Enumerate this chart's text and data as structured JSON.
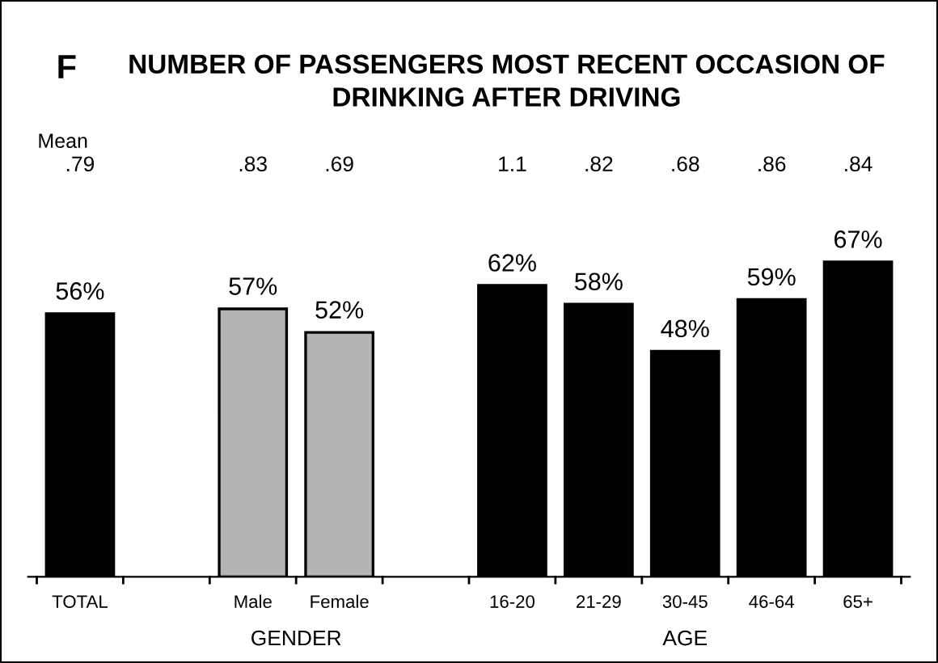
{
  "chart_data": {
    "type": "bar",
    "title": "NUMBER OF PASSENGERS MOST RECENT OCCASION OF DRINKING AFTER DRIVING",
    "categories": [
      "TOTAL",
      null,
      "Male",
      "Female",
      null,
      "16-20",
      "21-29",
      "30-45",
      "46-64",
      "65+"
    ],
    "values": [
      56,
      null,
      57,
      52,
      null,
      62,
      58,
      48,
      59,
      67
    ],
    "value_labels": [
      "56%",
      null,
      "57%",
      "52%",
      null,
      "62%",
      "58%",
      "48%",
      "59%",
      "67%"
    ],
    "colors": [
      "#000000",
      null,
      "#b4b4b4",
      "#b4b4b4",
      null,
      "#000000",
      "#000000",
      "#000000",
      "#000000",
      "#000000"
    ],
    "annotations": [
      "F",
      "Mean",
      "GENDER",
      "AGE",
      ".79",
      ".83",
      ".69",
      "1.1",
      ".82",
      ".68",
      ".86",
      ".84"
    ],
    "grid": false,
    "legend": false
  }
}
